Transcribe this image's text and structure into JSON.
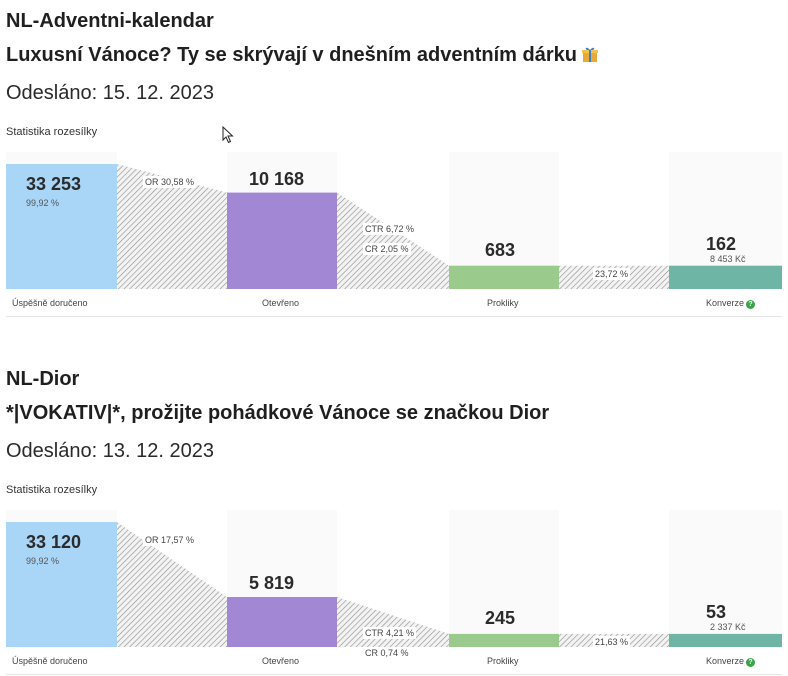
{
  "colors": {
    "delivered": "#a9d6f7",
    "opened": "#a287d4",
    "clicks": "#9bcb8c",
    "conversions": "#6fb5a5",
    "hatch": "#8d8d8d",
    "help": "#3aa34a"
  },
  "icons": {
    "gift": "gift-icon",
    "help": "help-icon",
    "cursor": "mouse-cursor-icon"
  },
  "newsletters": [
    {
      "title": "NL-Adventni-kalendar",
      "subject": "Luxusní Vánoce? Ty se skrývají v dnešním adventním dárku",
      "sent": "Odesláno: 15. 12. 2023",
      "stats_label": "Statistika rozesílky",
      "funnel": {
        "delivered": {
          "value": "33 253",
          "sub": "99,92 %",
          "label": "Úspěšně doručeno"
        },
        "opened": {
          "value": "10 168",
          "label": "Otevřeno"
        },
        "clicks": {
          "value": "683",
          "label": "Prokliky"
        },
        "conversions": {
          "value": "162",
          "sub": "8 453 Kč",
          "label": "Konverze",
          "help": "?"
        },
        "or_rate": "OR 30,58 %",
        "ctr_rate": "CTR 6,72 %",
        "cr_rate": "CR 2,05 %",
        "conv_rate": "23,72 %",
        "levels": {
          "delivered": 1.0,
          "opened": 0.7713,
          "clicks": 0.1865,
          "conversions": 0.1865
        }
      }
    },
    {
      "title": "NL-Dior",
      "subject": "*|VOKATIV|*, prožijte pohádkové Vánoce se značkou Dior",
      "sent": "Odesláno: 13. 12. 2023",
      "stats_label": "Statistika rozesílky",
      "funnel": {
        "delivered": {
          "value": "33 120",
          "sub": "99,92 %",
          "label": "Úspěšně doručeno"
        },
        "opened": {
          "value": "5 819",
          "label": "Otevřeno"
        },
        "clicks": {
          "value": "245",
          "label": "Prokliky"
        },
        "conversions": {
          "value": "53",
          "sub": "2 337 Kč",
          "label": "Konverze",
          "help": "?"
        },
        "or_rate": "OR 17,57 %",
        "ctr_rate": "CTR 4,21 %",
        "cr_rate": "CR 0,74 %",
        "conv_rate": "21,63 %",
        "levels": {
          "delivered": 1.0,
          "opened": 0.4,
          "clicks": 0.1048,
          "conversions": 0.1048
        }
      }
    }
  ]
}
